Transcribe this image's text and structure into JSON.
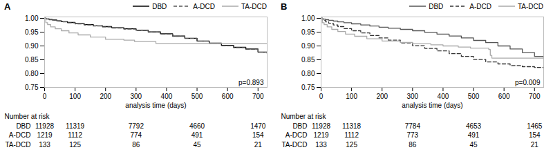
{
  "chart_data": [
    {
      "type": "line",
      "title": "A",
      "annotation": "p=0.893",
      "x_label": "analysis time (days)",
      "xlim": [
        0,
        730
      ],
      "xticks": [
        0,
        100,
        200,
        300,
        400,
        500,
        600,
        700
      ],
      "ylim": [
        0.75,
        1.005
      ],
      "yticks": [
        0.75,
        {
          "value": 0.8,
          "label": "0.80"
        },
        0.85,
        {
          "value": 0.9,
          "label": "0.90"
        },
        0.95,
        {
          "value": 1,
          "label": "1.00"
        }
      ],
      "grid": false,
      "legend": "upper right",
      "series": [
        {
          "name": "DBD",
          "color": "#000000",
          "line_style": "solid",
          "x": [
            0,
            5,
            15,
            25,
            40,
            55,
            75,
            100,
            130,
            160,
            190,
            220,
            260,
            300,
            340,
            380,
            420,
            460,
            500,
            540,
            580,
            620,
            660,
            700,
            730
          ],
          "values": [
            1.0,
            0.998,
            0.996,
            0.994,
            0.991,
            0.988,
            0.985,
            0.981,
            0.977,
            0.973,
            0.97,
            0.966,
            0.962,
            0.957,
            0.951,
            0.944,
            0.936,
            0.928,
            0.918,
            0.91,
            0.902,
            0.895,
            0.889,
            0.878,
            0.874
          ]
        },
        {
          "name": "A-DCD",
          "color": "#555555",
          "line_style": "dashed",
          "x": [
            0,
            5,
            15,
            25,
            40,
            55,
            75,
            100,
            130,
            160,
            190,
            220,
            260,
            300,
            340,
            380,
            420,
            460,
            500,
            540,
            580,
            620,
            660,
            700,
            730
          ],
          "values": [
            1.0,
            0.997,
            0.995,
            0.993,
            0.99,
            0.987,
            0.984,
            0.98,
            0.976,
            0.972,
            0.969,
            0.965,
            0.961,
            0.956,
            0.95,
            0.943,
            0.935,
            0.927,
            0.917,
            0.909,
            0.901,
            0.894,
            0.888,
            0.877,
            0.873
          ]
        },
        {
          "name": "TA-DCD",
          "color": "#aaaaaa",
          "line_style": "solid",
          "x": [
            0,
            4,
            10,
            20,
            35,
            55,
            80,
            110,
            150,
            200,
            260,
            290,
            295,
            300,
            360,
            365,
            460,
            465,
            490,
            495,
            500,
            730
          ],
          "values": [
            1.0,
            0.984,
            0.977,
            0.969,
            0.962,
            0.955,
            0.947,
            0.94,
            0.932,
            0.924,
            0.921,
            0.921,
            0.916,
            0.916,
            0.916,
            0.909,
            0.909,
            0.909,
            0.909,
            0.909,
            0.909,
            0.909
          ]
        }
      ],
      "risk_table": {
        "header": "Number at risk",
        "labels": [
          "DBD",
          "A-DCD",
          "TA-DCD"
        ],
        "times": [
          0,
          100,
          300,
          500,
          700
        ],
        "values": [
          [
            11928,
            11319,
            7792,
            4660,
            1470
          ],
          [
            1219,
            1112,
            774,
            491,
            154
          ],
          [
            133,
            125,
            86,
            45,
            21
          ]
        ]
      }
    },
    {
      "type": "line",
      "title": "B",
      "annotation": "p=0.009",
      "x_label": "analysis time (days)",
      "xlim": [
        0,
        730
      ],
      "xticks": [
        0,
        100,
        200,
        300,
        400,
        500,
        600,
        700
      ],
      "ylim": [
        0.75,
        1.005
      ],
      "yticks": [
        0.75,
        {
          "value": 0.8,
          "label": "0.80"
        },
        0.85,
        {
          "value": 0.9,
          "label": "0.90"
        },
        0.95,
        {
          "value": 1,
          "label": "1.00"
        }
      ],
      "grid": false,
      "legend": "upper right",
      "series": [
        {
          "name": "DBD",
          "color": "#555555",
          "line_style": "solid",
          "x": [
            0,
            5,
            15,
            25,
            40,
            55,
            75,
            100,
            130,
            160,
            190,
            220,
            260,
            300,
            340,
            380,
            420,
            460,
            500,
            540,
            580,
            620,
            660,
            700,
            730
          ],
          "values": [
            1.0,
            0.997,
            0.995,
            0.993,
            0.99,
            0.987,
            0.984,
            0.98,
            0.976,
            0.972,
            0.968,
            0.964,
            0.96,
            0.955,
            0.949,
            0.943,
            0.936,
            0.929,
            0.92,
            0.912,
            0.9,
            0.889,
            0.876,
            0.862,
            0.857
          ]
        },
        {
          "name": "A-DCD",
          "color": "#333333",
          "line_style": "dashed",
          "x": [
            0,
            5,
            15,
            25,
            40,
            55,
            75,
            100,
            130,
            160,
            190,
            220,
            260,
            300,
            340,
            380,
            420,
            460,
            500,
            540,
            580,
            620,
            660,
            700,
            730
          ],
          "values": [
            1.0,
            0.993,
            0.987,
            0.982,
            0.976,
            0.97,
            0.963,
            0.955,
            0.947,
            0.938,
            0.929,
            0.921,
            0.911,
            0.901,
            0.891,
            0.882,
            0.872,
            0.862,
            0.851,
            0.842,
            0.835,
            0.829,
            0.825,
            0.822,
            0.82
          ]
        },
        {
          "name": "TA-DCD",
          "color": "#aaaaaa",
          "line_style": "solid",
          "x": [
            0,
            4,
            10,
            20,
            35,
            55,
            80,
            110,
            150,
            200,
            260,
            300,
            360,
            400,
            450,
            490,
            550,
            555,
            560,
            650,
            700,
            730
          ],
          "values": [
            1.0,
            0.984,
            0.977,
            0.969,
            0.96,
            0.952,
            0.943,
            0.935,
            0.926,
            0.918,
            0.913,
            0.908,
            0.904,
            0.9,
            0.896,
            0.892,
            0.887,
            0.866,
            0.856,
            0.856,
            0.856,
            0.856
          ]
        }
      ],
      "risk_table": {
        "header": "Number at risk",
        "labels": [
          "DBD",
          "A-DCD",
          "TA-DCD"
        ],
        "times": [
          0,
          100,
          300,
          500,
          700
        ],
        "values": [
          [
            11928,
            11318,
            7784,
            4653,
            1465
          ],
          [
            1219,
            1112,
            773,
            491,
            154
          ],
          [
            133,
            125,
            86,
            45,
            21
          ]
        ]
      }
    }
  ]
}
